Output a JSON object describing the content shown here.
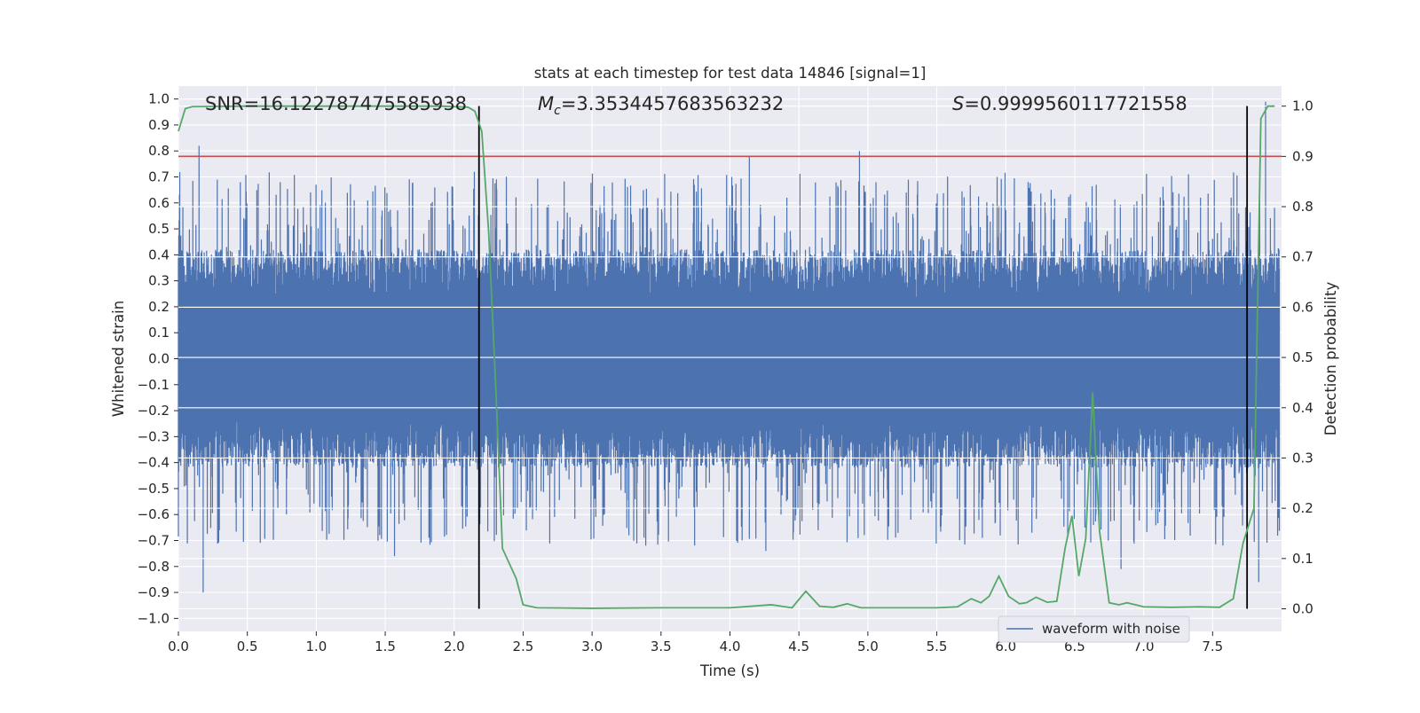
{
  "chart_data": {
    "type": "line",
    "title": "stats at each timestep for test data 14846 [signal=1]",
    "xlabel": "Time (s)",
    "ylabel_left": "Whitened strain",
    "ylabel_right": "Detection probability",
    "xlim": [
      0.0,
      8.0
    ],
    "ylim_left": [
      -1.05,
      1.05
    ],
    "ylim_right": [
      -0.045,
      1.04
    ],
    "x_ticks": [
      "0.0",
      "0.5",
      "1.0",
      "1.5",
      "2.0",
      "2.5",
      "3.0",
      "3.5",
      "4.0",
      "4.5",
      "5.0",
      "5.5",
      "6.0",
      "6.5",
      "7.0",
      "7.5"
    ],
    "x_tick_values": [
      0.0,
      0.5,
      1.0,
      1.5,
      2.0,
      2.5,
      3.0,
      3.5,
      4.0,
      4.5,
      5.0,
      5.5,
      6.0,
      6.5,
      7.0,
      7.5
    ],
    "y_ticks_left": [
      "1.0",
      "0.9",
      "0.8",
      "0.7",
      "0.6",
      "0.5",
      "0.4",
      "0.3",
      "0.2",
      "0.1",
      "0.0",
      "−0.1",
      "−0.2",
      "−0.3",
      "−0.4",
      "−0.5",
      "−0.6",
      "−0.7",
      "−0.8",
      "−0.9",
      "−1.0"
    ],
    "y_tick_values_left": [
      1.0,
      0.9,
      0.8,
      0.7,
      0.6,
      0.5,
      0.4,
      0.3,
      0.2,
      0.1,
      0.0,
      -0.1,
      -0.2,
      -0.3,
      -0.4,
      -0.5,
      -0.6,
      -0.7,
      -0.8,
      -0.9,
      -1.0
    ],
    "y_ticks_right": [
      "1.0",
      "0.9",
      "0.8",
      "0.7",
      "0.6",
      "0.5",
      "0.4",
      "0.3",
      "0.2",
      "0.1",
      "0.0"
    ],
    "y_tick_values_right": [
      1.0,
      0.9,
      0.8,
      0.7,
      0.6,
      0.5,
      0.4,
      0.3,
      0.2,
      0.1,
      0.0
    ],
    "grid": true,
    "legend_placement": "bottom-right",
    "annotations": {
      "snr": "SNR=16.122787475585938",
      "mc_prefix": "M",
      "mc_sub": "c",
      "mc_value": "=3.3534457683563232",
      "s_prefix": "S",
      "s_value": "=0.9999560117721558"
    },
    "series": [
      {
        "name": "waveform with noise",
        "axis": "left",
        "color": "#4c72b0",
        "style": "noise band",
        "typical_abs_amplitude": 0.42,
        "peak_amplitudes_upper": [
          {
            "x": 0.15,
            "y": 0.82
          },
          {
            "x": 0.45,
            "y": 0.68
          },
          {
            "x": 0.74,
            "y": 0.68
          },
          {
            "x": 1.0,
            "y": 0.67
          },
          {
            "x": 1.5,
            "y": 0.66
          },
          {
            "x": 2.15,
            "y": 0.72
          },
          {
            "x": 4.15,
            "y": 0.78
          },
          {
            "x": 4.95,
            "y": 0.8
          },
          {
            "x": 5.95,
            "y": 0.7
          },
          {
            "x": 7.9,
            "y": 0.99
          }
        ],
        "peak_amplitudes_lower": [
          {
            "x": 0.18,
            "y": -0.9
          },
          {
            "x": 1.57,
            "y": -0.76
          },
          {
            "x": 4.27,
            "y": -0.74
          },
          {
            "x": 6.85,
            "y": -0.81
          },
          {
            "x": 7.85,
            "y": -0.86
          }
        ]
      },
      {
        "axis": "right",
        "color": "#55a868",
        "x": [
          0.0,
          0.05,
          0.1,
          0.5,
          1.0,
          1.5,
          1.9,
          2.1,
          2.15,
          2.2,
          2.25,
          2.3,
          2.35,
          2.45,
          2.5,
          2.6,
          3.0,
          3.5,
          4.0,
          4.3,
          4.45,
          4.55,
          4.65,
          4.75,
          4.85,
          4.95,
          5.2,
          5.5,
          5.65,
          5.75,
          5.82,
          5.88,
          5.95,
          6.02,
          6.1,
          6.15,
          6.22,
          6.3,
          6.37,
          6.43,
          6.48,
          6.53,
          6.58,
          6.63,
          6.68,
          6.75,
          6.82,
          6.88,
          7.0,
          7.2,
          7.4,
          7.55,
          7.65,
          7.72,
          7.8,
          7.85,
          7.9,
          7.95
        ],
        "y": [
          0.95,
          0.995,
          0.999,
          1.0,
          1.0,
          1.0,
          1.0,
          0.998,
          0.99,
          0.95,
          0.75,
          0.45,
          0.12,
          0.06,
          0.008,
          0.002,
          0.001,
          0.002,
          0.002,
          0.008,
          0.002,
          0.035,
          0.005,
          0.003,
          0.01,
          0.002,
          0.002,
          0.002,
          0.004,
          0.02,
          0.012,
          0.025,
          0.065,
          0.025,
          0.01,
          0.012,
          0.023,
          0.013,
          0.015,
          0.12,
          0.185,
          0.065,
          0.14,
          0.43,
          0.155,
          0.012,
          0.008,
          0.012,
          0.004,
          0.003,
          0.004,
          0.003,
          0.02,
          0.13,
          0.2,
          0.975,
          1.0,
          1.0
        ]
      },
      {
        "axis": "right",
        "color": "#c44e52",
        "y": [
          0.9,
          0.9
        ]
      },
      {
        "axis": "right",
        "color": "#000000",
        "style": "vertical line",
        "x": [
          2.18,
          7.75
        ]
      }
    ]
  }
}
